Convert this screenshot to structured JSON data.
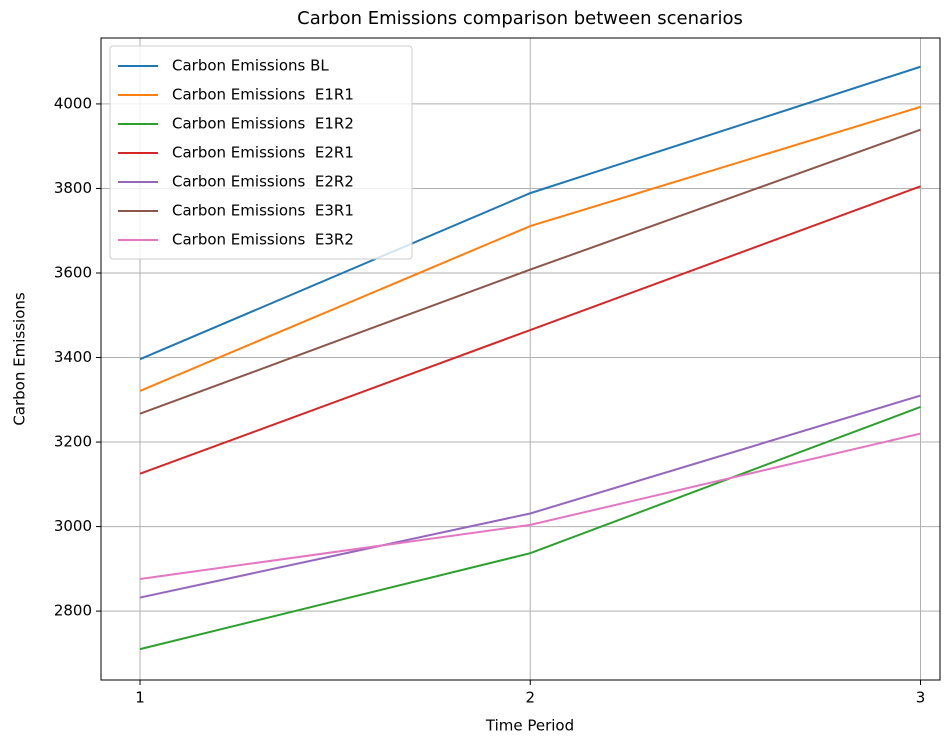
{
  "chart_data": {
    "type": "line",
    "title": "Carbon Emissions comparison between scenarios",
    "x_label": "Time Period",
    "y_label": "Carbon Emissions",
    "x": [
      1,
      2,
      3
    ],
    "series": [
      {
        "name": "Carbon Emissions BL",
        "color": "#1f77b4",
        "values": [
          3396,
          3789,
          4088
        ]
      },
      {
        "name": "Carbon Emissions  E1R1",
        "color": "#ff7f0e",
        "values": [
          3321,
          3711,
          3993
        ]
      },
      {
        "name": "Carbon Emissions  E1R2",
        "color": "#2ca02c",
        "values": [
          2710,
          2937,
          3283
        ]
      },
      {
        "name": "Carbon Emissions  E2R1",
        "color": "#d62728",
        "values": [
          3125,
          3465,
          3805
        ]
      },
      {
        "name": "Carbon Emissions  E2R2",
        "color": "#9467bd",
        "values": [
          2832,
          3031,
          3310
        ]
      },
      {
        "name": "Carbon Emissions  E3R1",
        "color": "#8c564b",
        "values": [
          3267,
          3608,
          3939
        ]
      },
      {
        "name": "Carbon Emissions  E3R2",
        "color": "#e377c2",
        "values": [
          2876,
          3004,
          3220
        ]
      }
    ],
    "xlim": [
      0.9,
      3.05
    ],
    "ylim": [
      2637,
      4156
    ],
    "xticks": [
      1,
      2,
      3
    ],
    "yticks": [
      2800,
      3000,
      3200,
      3400,
      3600,
      3800,
      4000
    ],
    "grid": true,
    "legend": "upper left"
  }
}
